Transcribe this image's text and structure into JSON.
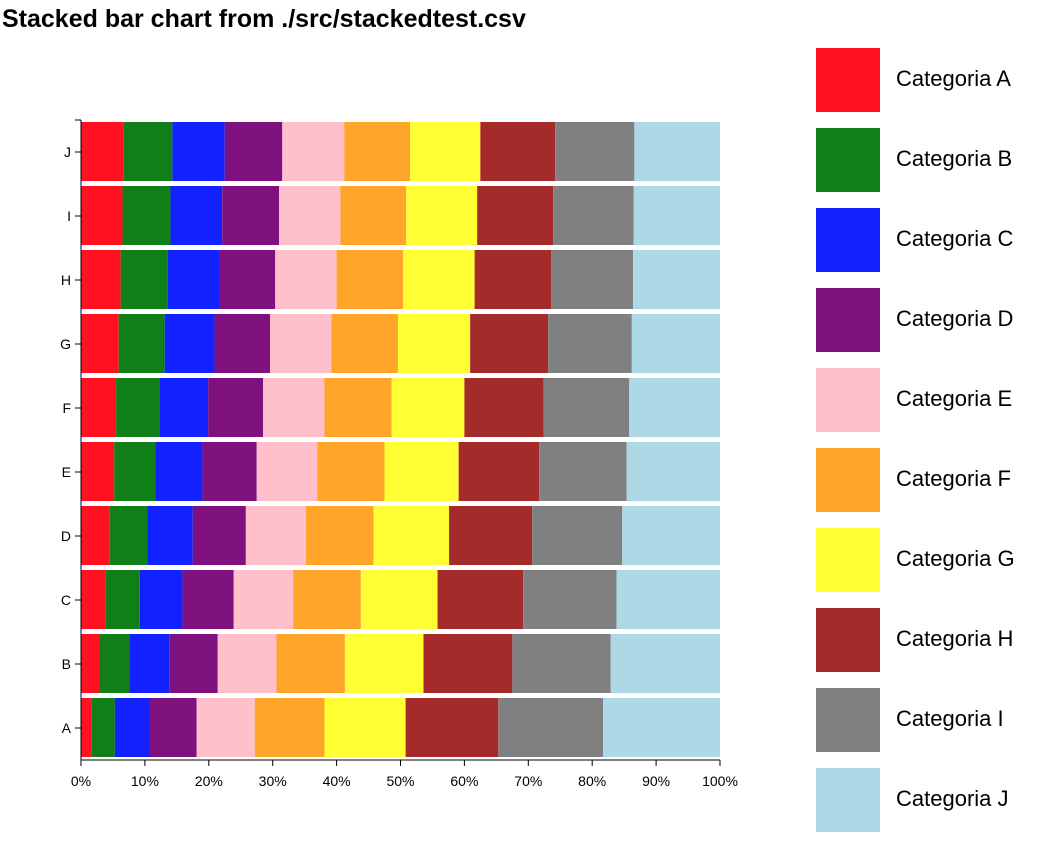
{
  "title": "Stacked bar chart from ./src/stackedtest.csv",
  "chart_data": {
    "type": "bar",
    "orientation": "horizontal",
    "stacked": true,
    "normalized": true,
    "categories": [
      "A",
      "B",
      "C",
      "D",
      "E",
      "F",
      "G",
      "H",
      "I",
      "J"
    ],
    "xlim": [
      0,
      100
    ],
    "x_ticks": [
      "0%",
      "10%",
      "20%",
      "30%",
      "40%",
      "50%",
      "60%",
      "70%",
      "80%",
      "90%",
      "100%"
    ],
    "legend_position": "right",
    "series": [
      {
        "name": "Categoria A",
        "color": "#ff1122",
        "values": [
          1.7,
          2.9,
          3.8,
          4.5,
          5.2,
          5.5,
          5.9,
          6.2,
          6.5,
          6.7
        ]
      },
      {
        "name": "Categoria B",
        "color": "#117f18",
        "values": [
          3.6,
          4.7,
          5.4,
          5.9,
          6.4,
          6.8,
          7.2,
          7.4,
          7.5,
          7.6
        ]
      },
      {
        "name": "Categoria C",
        "color": "#1122ff",
        "values": [
          5.5,
          6.2,
          6.7,
          7.1,
          7.4,
          7.6,
          7.8,
          8.0,
          8.1,
          8.2
        ]
      },
      {
        "name": "Categoria D",
        "color": "#7f117f",
        "values": [
          7.3,
          7.6,
          8.0,
          8.3,
          8.5,
          8.6,
          8.7,
          8.8,
          8.9,
          9.0
        ]
      },
      {
        "name": "Categoria E",
        "color": "#ffc0cb",
        "values": [
          9.1,
          9.2,
          9.3,
          9.4,
          9.5,
          9.6,
          9.6,
          9.6,
          9.6,
          9.7
        ]
      },
      {
        "name": "Categoria F",
        "color": "#ffa52a",
        "values": [
          10.9,
          10.7,
          10.6,
          10.6,
          10.5,
          10.5,
          10.4,
          10.4,
          10.3,
          10.3
        ]
      },
      {
        "name": "Categoria G",
        "color": "#ffff33",
        "values": [
          12.7,
          12.3,
          12.0,
          11.8,
          11.6,
          11.4,
          11.3,
          11.2,
          11.1,
          11.0
        ]
      },
      {
        "name": "Categoria H",
        "color": "#a52a2a",
        "values": [
          14.5,
          13.9,
          13.4,
          13.0,
          12.6,
          12.4,
          12.2,
          12.0,
          11.9,
          11.7
        ]
      },
      {
        "name": "Categoria I",
        "color": "#808080",
        "values": [
          16.4,
          15.4,
          14.6,
          14.1,
          13.7,
          13.4,
          13.1,
          12.8,
          12.6,
          12.4
        ]
      },
      {
        "name": "Categoria J",
        "color": "#add8e6",
        "values": [
          18.3,
          17.1,
          16.2,
          15.3,
          14.6,
          14.2,
          13.8,
          13.6,
          13.5,
          13.4
        ]
      }
    ]
  }
}
